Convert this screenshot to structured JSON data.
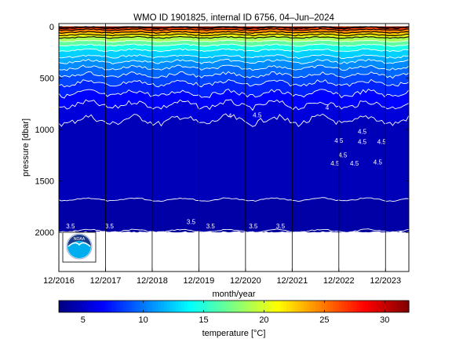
{
  "chart_data": {
    "type": "heatmap",
    "title": "WMO ID 1901825, internal ID 6756, 04–Jun–2024",
    "xlabel": "month/year",
    "ylabel": "pressure [dbar]",
    "x_ticks": [
      "12/2016",
      "12/2017",
      "12/2018",
      "12/2019",
      "12/2020",
      "12/2021",
      "12/2022",
      "12/2023"
    ],
    "x_range": [
      "2016-12",
      "2024-06"
    ],
    "y_ticks": [
      0,
      500,
      1000,
      1500,
      2000
    ],
    "ylim": [
      2380,
      -30
    ],
    "y_reversed": true,
    "grid": "vertical lines at December ticks",
    "data_depth_max": 2000,
    "colorbar": {
      "label": "temperature [°C]",
      "ticks": [
        5,
        10,
        15,
        20,
        25,
        30
      ],
      "range": [
        3,
        32
      ],
      "colormap": "jet"
    },
    "isotherm_depths": [
      {
        "temp": 30,
        "depth": 5
      },
      {
        "temp": 28,
        "depth": 12
      },
      {
        "temp": 26,
        "depth": 30
      },
      {
        "temp": 24,
        "depth": 55
      },
      {
        "temp": 22,
        "depth": 80
      },
      {
        "temp": 20,
        "depth": 105
      },
      {
        "temp": 18,
        "depth": 140
      },
      {
        "temp": 16,
        "depth": 180
      },
      {
        "temp": 14,
        "depth": 230
      },
      {
        "temp": 12,
        "depth": 290
      },
      {
        "temp": 11,
        "depth": 340
      },
      {
        "temp": 10,
        "depth": 400
      },
      {
        "temp": 9,
        "depth": 470
      },
      {
        "temp": 8,
        "depth": 550
      },
      {
        "temp": 7,
        "depth": 650
      },
      {
        "temp": 6,
        "depth": 760
      },
      {
        "temp": 5,
        "depth": 910
      },
      {
        "temp": 4,
        "depth": 1680
      },
      {
        "temp": 3.5,
        "depth": 1985
      }
    ],
    "contour_labels": [
      {
        "text": "4",
        "x": "2020-08",
        "y": 890
      },
      {
        "text": "4",
        "x": "2022-09",
        "y": 810
      },
      {
        "text": "4.5",
        "x": "2021-03",
        "y": 880
      },
      {
        "text": "4.5",
        "x": "2023-06",
        "y": 1040
      },
      {
        "text": "4.5",
        "x": "2023-11",
        "y": 1140
      },
      {
        "text": "4.5",
        "x": "2023-06",
        "y": 1140
      },
      {
        "text": "4.5",
        "x": "2022-12",
        "y": 1130
      },
      {
        "text": "4.5",
        "x": "2023-01",
        "y": 1270
      },
      {
        "text": "4.5",
        "x": "2022-11",
        "y": 1350
      },
      {
        "text": "4.5",
        "x": "2023-04",
        "y": 1350
      },
      {
        "text": "4.5",
        "x": "2023-10",
        "y": 1340
      },
      {
        "text": "3.5",
        "x": "2017-03",
        "y": 1960
      },
      {
        "text": "3.5",
        "x": "2018-01",
        "y": 1960
      },
      {
        "text": "3.5",
        "x": "2019-10",
        "y": 1920
      },
      {
        "text": "3.5",
        "x": "2020-03",
        "y": 1960
      },
      {
        "text": "3.5",
        "x": "2021-02",
        "y": 1960
      },
      {
        "text": "3.5",
        "x": "2021-09",
        "y": 1960
      }
    ]
  },
  "logo": {
    "name": "noaa-logo-icon",
    "text": "NOAA"
  }
}
